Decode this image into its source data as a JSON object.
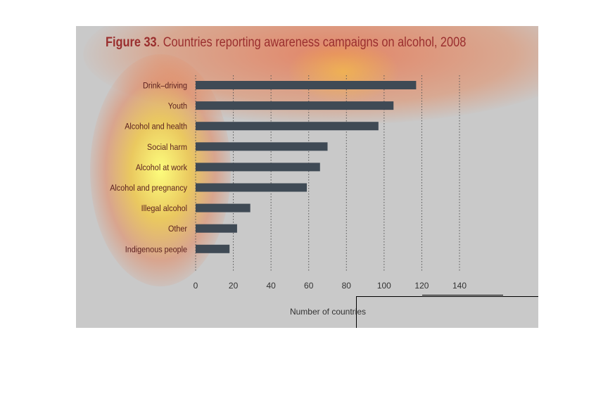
{
  "chart_data": {
    "type": "bar",
    "orientation": "horizontal",
    "title_bold": "Figure 33",
    "title_rest": ". Countries reporting awareness campaigns on alcohol, 2008",
    "categories": [
      "Drink–driving",
      "Youth",
      "Alcohol and health",
      "Social harm",
      "Alcohol at work",
      "Alcohol and pregnancy",
      "Illegal alcohol",
      "Other",
      "Indigenous people"
    ],
    "values": [
      117,
      105,
      97,
      70,
      66,
      59,
      29,
      22,
      18
    ],
    "xlabel": "Number of countries",
    "xticks": [
      0,
      20,
      40,
      60,
      80,
      100,
      120,
      140
    ],
    "xlim": [
      0,
      140
    ],
    "grid": "vertical dotted",
    "bar_color": "#3f4a55",
    "label_color": "#5a1e1e"
  }
}
